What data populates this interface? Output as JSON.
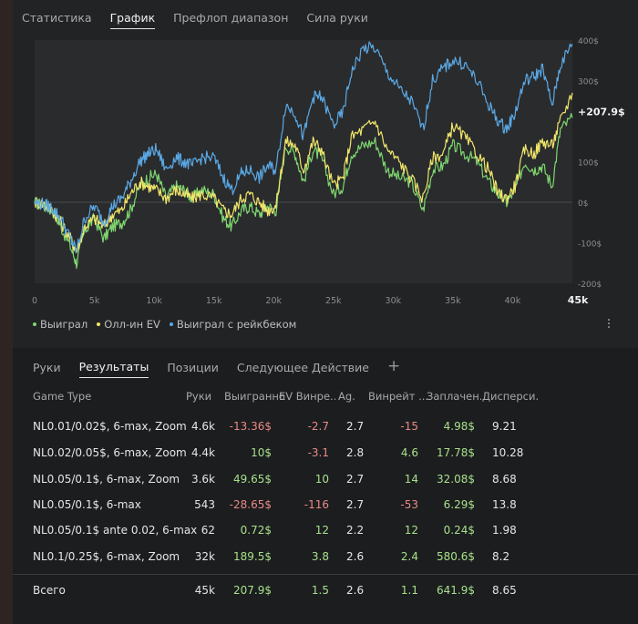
{
  "top_tabs": [
    {
      "label": "Статистика",
      "active": false
    },
    {
      "label": "График",
      "active": true
    },
    {
      "label": "Префлоп диапазон",
      "active": false
    },
    {
      "label": "Сила руки",
      "active": false
    }
  ],
  "chart_data": {
    "type": "line",
    "x_ticks": [
      "0",
      "5k",
      "10k",
      "15k",
      "20k",
      "25k",
      "30k",
      "35k",
      "40k"
    ],
    "x_last_label": "45k",
    "xlim": [
      0,
      45000
    ],
    "y_ticks": [
      "400$",
      "300$",
      "100$",
      "0$",
      "-100$",
      "-200$"
    ],
    "ylim": [
      -200,
      400
    ],
    "end_label": "+207.9$",
    "series": [
      {
        "name": "Выиграл",
        "color": "#7ed66f",
        "x": [
          0,
          800,
          1500,
          2200,
          3000,
          3500,
          4200,
          5000,
          5800,
          6500,
          7300,
          8000,
          8800,
          9500,
          10200,
          11000,
          11800,
          12500,
          13200,
          14000,
          15000,
          15800,
          16500,
          17300,
          18000,
          18800,
          19500,
          20200,
          21000,
          21800,
          22500,
          23300,
          24000,
          25000,
          25800,
          26500,
          27500,
          28500,
          29500,
          30500,
          31500,
          32500,
          33300,
          34200,
          35000,
          36000,
          37000,
          38000,
          38800,
          39500,
          40200,
          41000,
          41800,
          42500,
          43300,
          44000,
          45000
        ],
        "y": [
          0,
          -10,
          -20,
          -60,
          -110,
          -150,
          -70,
          -40,
          -90,
          -60,
          -50,
          -20,
          40,
          60,
          70,
          10,
          40,
          30,
          10,
          30,
          20,
          -40,
          -60,
          -20,
          -10,
          -30,
          -10,
          -20,
          140,
          120,
          50,
          130,
          110,
          20,
          40,
          120,
          140,
          150,
          80,
          60,
          50,
          -20,
          80,
          90,
          140,
          120,
          100,
          50,
          20,
          0,
          30,
          100,
          80,
          90,
          40,
          180,
          208
        ]
      },
      {
        "name": "Олл-ин EV",
        "color": "#f0e66a",
        "x": [
          0,
          800,
          1500,
          2200,
          3000,
          3500,
          4200,
          5000,
          5800,
          6500,
          7300,
          8000,
          8800,
          9500,
          10200,
          11000,
          11800,
          12500,
          13200,
          14000,
          15000,
          15800,
          16500,
          17300,
          18000,
          18800,
          19500,
          20200,
          21000,
          21800,
          22500,
          23300,
          24000,
          25000,
          25800,
          26500,
          27500,
          28500,
          29500,
          30500,
          31500,
          32500,
          33300,
          34200,
          35000,
          36000,
          37000,
          38000,
          38800,
          39500,
          40200,
          41000,
          41800,
          42500,
          43300,
          44000,
          45000
        ],
        "y": [
          0,
          -5,
          -20,
          -50,
          -90,
          -120,
          -60,
          -40,
          -60,
          -30,
          -20,
          20,
          50,
          40,
          30,
          10,
          30,
          20,
          10,
          20,
          10,
          -20,
          -30,
          10,
          20,
          0,
          -20,
          -10,
          150,
          140,
          80,
          150,
          130,
          40,
          60,
          160,
          180,
          200,
          130,
          100,
          60,
          10,
          110,
          120,
          190,
          160,
          120,
          80,
          20,
          10,
          40,
          130,
          120,
          150,
          140,
          200,
          270
        ]
      },
      {
        "name": "Выиграл с рейкбеком",
        "color": "#5aa9e6",
        "x": [
          0,
          800,
          1500,
          2200,
          3000,
          3500,
          4200,
          5000,
          5800,
          6500,
          7300,
          8000,
          8800,
          9500,
          10200,
          11000,
          11800,
          12500,
          13200,
          14000,
          15000,
          15800,
          16500,
          17300,
          18000,
          18800,
          19500,
          20200,
          21000,
          21800,
          22500,
          23300,
          24000,
          25000,
          25800,
          26500,
          27500,
          28500,
          29500,
          30500,
          31500,
          32500,
          33300,
          34200,
          35000,
          36000,
          37000,
          38000,
          38800,
          39500,
          40200,
          41000,
          41800,
          42500,
          43300,
          44000,
          45000
        ],
        "y": [
          0,
          -5,
          -15,
          -40,
          -90,
          -120,
          -40,
          -10,
          -50,
          -10,
          10,
          50,
          100,
          120,
          130,
          80,
          110,
          100,
          90,
          110,
          110,
          60,
          30,
          70,
          80,
          60,
          90,
          80,
          240,
          220,
          160,
          260,
          260,
          190,
          220,
          320,
          380,
          380,
          320,
          280,
          250,
          180,
          300,
          330,
          350,
          340,
          300,
          240,
          200,
          180,
          220,
          300,
          310,
          330,
          240,
          340,
          390
        ]
      }
    ]
  },
  "legend": [
    "Выиграл",
    "Олл-ин EV",
    "Выиграл с рейкбеком"
  ],
  "bottom_tabs": [
    {
      "label": "Руки",
      "active": false
    },
    {
      "label": "Результаты",
      "active": true
    },
    {
      "label": "Позиции",
      "active": false
    },
    {
      "label": "Следующее Действие",
      "active": false
    }
  ],
  "add_tab": "+",
  "table": {
    "headers": [
      "Game Type",
      "Руки",
      "Выигранно",
      "EV Винре...",
      "Ag.",
      "Винрейт ...",
      "Заплачен...",
      "Дисперси..."
    ],
    "rows": [
      {
        "game": "NL0.01/0.02$, 6-max, Zoom",
        "hands": "4.6k",
        "won": "-13.36$",
        "ev": "-2.7",
        "ag": "2.7",
        "wr": "-15",
        "paid": "4.98$",
        "var": "9.21"
      },
      {
        "game": "NL0.02/0.05$, 6-max, Zoom",
        "hands": "4.4k",
        "won": "10$",
        "ev": "-3.1",
        "ag": "2.8",
        "wr": "4.6",
        "paid": "17.78$",
        "var": "10.28"
      },
      {
        "game": "NL0.05/0.1$, 6-max, Zoom",
        "hands": "3.6k",
        "won": "49.65$",
        "ev": "10",
        "ag": "2.7",
        "wr": "14",
        "paid": "32.08$",
        "var": "8.68"
      },
      {
        "game": "NL0.05/0.1$, 6-max",
        "hands": "543",
        "won": "-28.65$",
        "ev": "-116",
        "ag": "2.7",
        "wr": "-53",
        "paid": "6.29$",
        "var": "13.8"
      },
      {
        "game": "NL0.05/0.1$ ante 0.02, 6-max",
        "hands": "62",
        "won": "0.72$",
        "ev": "12",
        "ag": "2.2",
        "wr": "12",
        "paid": "0.24$",
        "var": "1.98"
      },
      {
        "game": "NL0.1/0.25$, 6-max, Zoom",
        "hands": "32k",
        "won": "189.5$",
        "ev": "3.8",
        "ag": "2.6",
        "wr": "2.4",
        "paid": "580.6$",
        "var": "8.2"
      }
    ],
    "total": {
      "game": "Всего",
      "hands": "45k",
      "won": "207.9$",
      "ev": "1.5",
      "ag": "2.6",
      "wr": "1.1",
      "paid": "641.9$",
      "var": "8.65"
    }
  }
}
